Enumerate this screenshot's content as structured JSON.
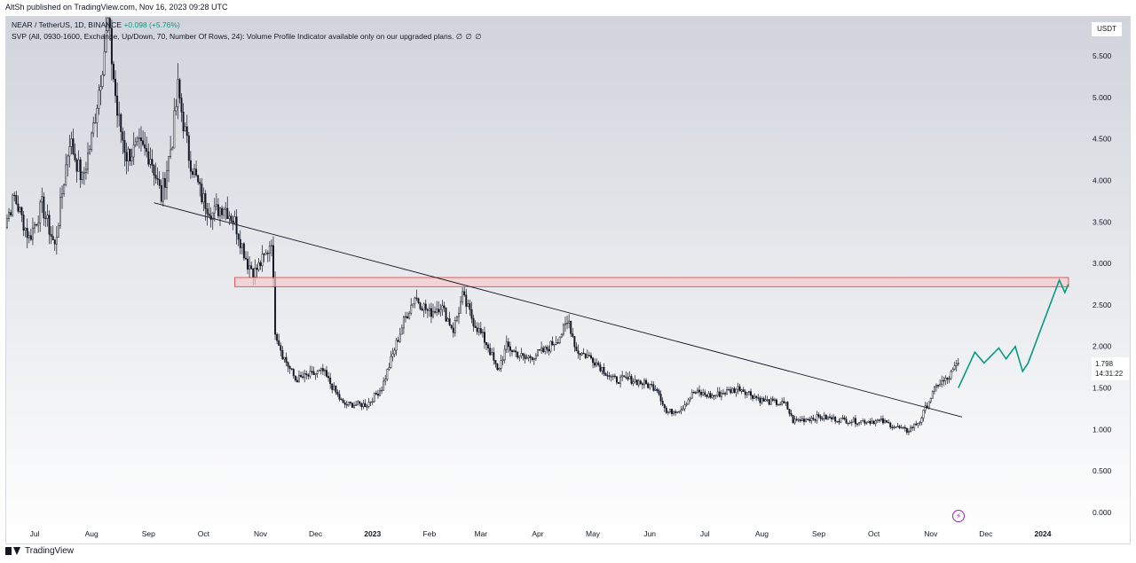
{
  "header": {
    "published": "AltSh published on TradingView.com, Nov 16, 2023 09:28 UTC"
  },
  "legend": {
    "symbol": "NEAR / TetherUS, 1D, BINANCE",
    "change": "+0.098 (+5.76%)",
    "indicator": "SVP (All, 0930-1600, Exchange, Up/Down, 70, Number Of Rows, 24): Volume Profile Indicator available only on our upgraded plans.",
    "indicator_icons": "∅ ∅ ∅"
  },
  "price_scale": {
    "currency": "USDT",
    "last_price": "1.798",
    "countdown": "14:31:22"
  },
  "footer": {
    "brand": "TradingView"
  },
  "colors": {
    "background_top": "#d1d4dc",
    "background_bottom": "#ffffff",
    "candle": "#131722",
    "trendline": "#131722",
    "zone_fill": "#f7c9cc",
    "zone_border": "#e53935",
    "projection": "#089981",
    "bolt": "#9c27b0"
  },
  "icons": {
    "bolt": "lightning-bolt-icon",
    "logo": "tradingview-logo-icon"
  },
  "chart_data": {
    "type": "candlestick",
    "symbol": "NEAR / TetherUS",
    "interval": "1D",
    "ylim": [
      0,
      5.9
    ],
    "yticks": [
      "0.000",
      "0.500",
      "1.000",
      "1.500",
      "2.000",
      "2.500",
      "3.000",
      "3.500",
      "4.000",
      "4.500",
      "5.000",
      "5.500"
    ],
    "xticks": [
      {
        "date": "2022-07-01",
        "label": "Jul"
      },
      {
        "date": "2022-08-01",
        "label": "Aug"
      },
      {
        "date": "2022-09-01",
        "label": "Sep"
      },
      {
        "date": "2022-10-01",
        "label": "Oct"
      },
      {
        "date": "2022-11-01",
        "label": "Nov"
      },
      {
        "date": "2022-12-01",
        "label": "Dec"
      },
      {
        "date": "2023-01-01",
        "label": "2023"
      },
      {
        "date": "2023-02-01",
        "label": "Feb"
      },
      {
        "date": "2023-03-01",
        "label": "Mar"
      },
      {
        "date": "2023-04-01",
        "label": "Apr"
      },
      {
        "date": "2023-05-01",
        "label": "May"
      },
      {
        "date": "2023-06-01",
        "label": "Jun"
      },
      {
        "date": "2023-07-01",
        "label": "Jul"
      },
      {
        "date": "2023-08-01",
        "label": "Aug"
      },
      {
        "date": "2023-09-01",
        "label": "Sep"
      },
      {
        "date": "2023-10-01",
        "label": "Oct"
      },
      {
        "date": "2023-11-01",
        "label": "Nov"
      },
      {
        "date": "2023-12-01",
        "label": "Dec"
      },
      {
        "date": "2024-01-01",
        "label": "2024"
      }
    ],
    "price_path": [
      {
        "date": "2022-06-12",
        "close": 3.3
      },
      {
        "date": "2022-06-20",
        "close": 3.8
      },
      {
        "date": "2022-06-28",
        "close": 3.3
      },
      {
        "date": "2022-07-05",
        "close": 3.7
      },
      {
        "date": "2022-07-12",
        "close": 3.2
      },
      {
        "date": "2022-07-20",
        "close": 4.5
      },
      {
        "date": "2022-07-27",
        "close": 4.0
      },
      {
        "date": "2022-08-01",
        "close": 4.5
      },
      {
        "date": "2022-08-05",
        "close": 5.1
      },
      {
        "date": "2022-08-10",
        "close": 5.9
      },
      {
        "date": "2022-08-15",
        "close": 4.8
      },
      {
        "date": "2022-08-20",
        "close": 4.3
      },
      {
        "date": "2022-08-27",
        "close": 4.4
      },
      {
        "date": "2022-09-02",
        "close": 4.3
      },
      {
        "date": "2022-09-08",
        "close": 3.8
      },
      {
        "date": "2022-09-14",
        "close": 4.5
      },
      {
        "date": "2022-09-17",
        "close": 5.1
      },
      {
        "date": "2022-09-23",
        "close": 4.3
      },
      {
        "date": "2022-09-30",
        "close": 3.8
      },
      {
        "date": "2022-10-06",
        "close": 3.6
      },
      {
        "date": "2022-10-12",
        "close": 3.7
      },
      {
        "date": "2022-10-18",
        "close": 3.5
      },
      {
        "date": "2022-10-25",
        "close": 3.0
      },
      {
        "date": "2022-10-29",
        "close": 2.9
      },
      {
        "date": "2022-11-04",
        "close": 3.1
      },
      {
        "date": "2022-11-07",
        "close": 3.3
      },
      {
        "date": "2022-11-09",
        "close": 2.2
      },
      {
        "date": "2022-11-13",
        "close": 1.9
      },
      {
        "date": "2022-11-20",
        "close": 1.6
      },
      {
        "date": "2022-12-05",
        "close": 1.7
      },
      {
        "date": "2022-12-16",
        "close": 1.3
      },
      {
        "date": "2022-12-29",
        "close": 1.3
      },
      {
        "date": "2023-01-06",
        "close": 1.5
      },
      {
        "date": "2023-01-12",
        "close": 1.9
      },
      {
        "date": "2023-01-18",
        "close": 2.3
      },
      {
        "date": "2023-01-24",
        "close": 2.6
      },
      {
        "date": "2023-02-01",
        "close": 2.4
      },
      {
        "date": "2023-02-07",
        "close": 2.5
      },
      {
        "date": "2023-02-14",
        "close": 2.2
      },
      {
        "date": "2023-02-19",
        "close": 2.6
      },
      {
        "date": "2023-02-25",
        "close": 2.3
      },
      {
        "date": "2023-03-05",
        "close": 2.0
      },
      {
        "date": "2023-03-10",
        "close": 1.7
      },
      {
        "date": "2023-03-15",
        "close": 2.0
      },
      {
        "date": "2023-03-25",
        "close": 1.85
      },
      {
        "date": "2023-04-05",
        "close": 1.95
      },
      {
        "date": "2023-04-12",
        "close": 2.1
      },
      {
        "date": "2023-04-18",
        "close": 2.3
      },
      {
        "date": "2023-04-22",
        "close": 1.95
      },
      {
        "date": "2023-05-01",
        "close": 1.85
      },
      {
        "date": "2023-05-12",
        "close": 1.6
      },
      {
        "date": "2023-05-22",
        "close": 1.6
      },
      {
        "date": "2023-06-05",
        "close": 1.5
      },
      {
        "date": "2023-06-10",
        "close": 1.2
      },
      {
        "date": "2023-06-18",
        "close": 1.25
      },
      {
        "date": "2023-06-25",
        "close": 1.45
      },
      {
        "date": "2023-07-05",
        "close": 1.4
      },
      {
        "date": "2023-07-12",
        "close": 1.45
      },
      {
        "date": "2023-07-20",
        "close": 1.5
      },
      {
        "date": "2023-08-01",
        "close": 1.35
      },
      {
        "date": "2023-08-14",
        "close": 1.3
      },
      {
        "date": "2023-08-18",
        "close": 1.1
      },
      {
        "date": "2023-09-01",
        "close": 1.15
      },
      {
        "date": "2023-09-20",
        "close": 1.1
      },
      {
        "date": "2023-10-05",
        "close": 1.1
      },
      {
        "date": "2023-10-19",
        "close": 0.98
      },
      {
        "date": "2023-10-26",
        "close": 1.1
      },
      {
        "date": "2023-10-31",
        "close": 1.35
      },
      {
        "date": "2023-11-05",
        "close": 1.55
      },
      {
        "date": "2023-11-10",
        "close": 1.6
      },
      {
        "date": "2023-11-16",
        "close": 1.8
      }
    ],
    "trendline": {
      "from": {
        "date": "2022-09-04",
        "price": 3.73
      },
      "to": {
        "date": "2023-11-18",
        "price": 1.15
      }
    },
    "resistance_zone": {
      "from_date": "2022-10-18",
      "to_date": "2024-01-15",
      "low": 2.72,
      "high": 2.83
    },
    "projection": [
      {
        "date": "2023-11-16",
        "close": 1.5
      },
      {
        "date": "2023-11-25",
        "close": 1.93
      },
      {
        "date": "2023-11-30",
        "close": 1.8
      },
      {
        "date": "2023-12-08",
        "close": 1.98
      },
      {
        "date": "2023-12-12",
        "close": 1.85
      },
      {
        "date": "2023-12-17",
        "close": 2.0
      },
      {
        "date": "2023-12-21",
        "close": 1.7
      },
      {
        "date": "2023-12-24",
        "close": 1.8
      },
      {
        "date": "2024-01-10",
        "close": 2.8
      },
      {
        "date": "2024-01-13",
        "close": 2.65
      },
      {
        "date": "2024-01-15",
        "close": 2.75
      }
    ],
    "last_close": 1.798
  }
}
